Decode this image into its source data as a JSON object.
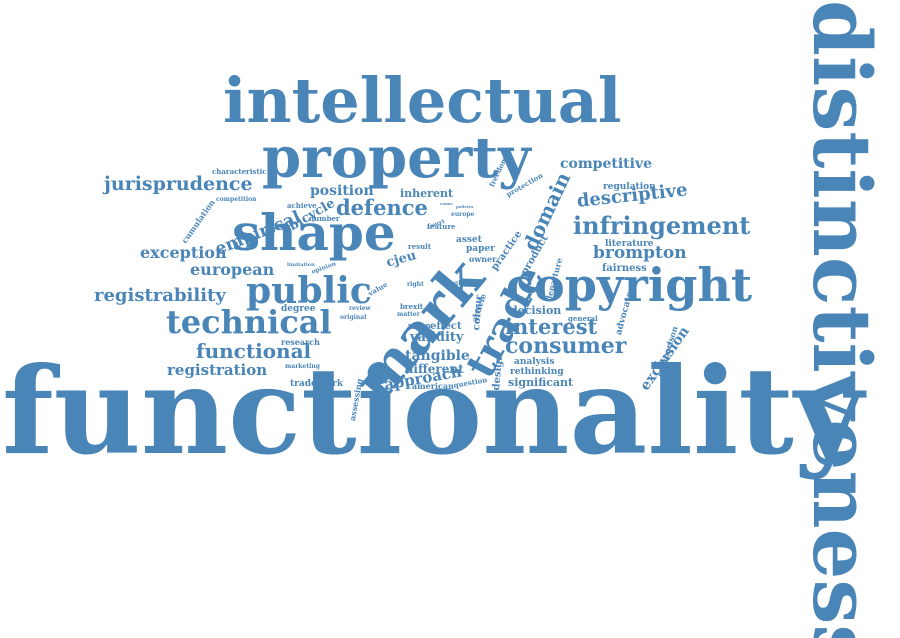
{
  "color": "#4a85b8",
  "words": [
    {
      "text": "functionality",
      "size": 1.0
    },
    {
      "text": "distinctiveness",
      "size": 0.8
    },
    {
      "text": "intellectual",
      "size": 0.55
    },
    {
      "text": "property",
      "size": 0.5
    },
    {
      "text": "mark",
      "size": 0.48
    },
    {
      "text": "shape",
      "size": 0.45
    },
    {
      "text": "copyright",
      "size": 0.4
    },
    {
      "text": "trade",
      "size": 0.34
    },
    {
      "text": "public",
      "size": 0.3
    },
    {
      "text": "technical",
      "size": 0.28
    },
    {
      "text": "infringement",
      "size": 0.22
    },
    {
      "text": "consumer",
      "size": 0.2
    },
    {
      "text": "interest",
      "size": 0.2
    },
    {
      "text": "defence",
      "size": 0.18
    },
    {
      "text": "functional",
      "size": 0.17
    },
    {
      "text": "jurisprudence",
      "size": 0.17
    },
    {
      "text": "descriptive",
      "size": 0.17
    },
    {
      "text": "domain",
      "size": 0.16
    },
    {
      "text": "registrability",
      "size": 0.15
    },
    {
      "text": "brompton",
      "size": 0.15
    },
    {
      "text": "exception",
      "size": 0.14
    },
    {
      "text": "european",
      "size": 0.14
    },
    {
      "text": "registration",
      "size": 0.13
    },
    {
      "text": "competitive",
      "size": 0.13
    },
    {
      "text": "empirical",
      "size": 0.13
    },
    {
      "text": "approach",
      "size": 0.13
    },
    {
      "text": "position",
      "size": 0.12
    },
    {
      "text": "tangible",
      "size": 0.12
    },
    {
      "text": "validity",
      "size": 0.11
    },
    {
      "text": "bicycle",
      "size": 0.11
    },
    {
      "text": "exclusion",
      "size": 0.11
    },
    {
      "text": "different",
      "size": 0.1
    },
    {
      "text": "significant",
      "size": 0.09
    },
    {
      "text": "inherent",
      "size": 0.09
    },
    {
      "text": "decision",
      "size": 0.09
    },
    {
      "text": "cjeu",
      "size": 0.09
    },
    {
      "text": "effect",
      "size": 0.08
    },
    {
      "text": "fairness",
      "size": 0.08
    },
    {
      "text": "colour",
      "size": 0.08
    },
    {
      "text": "design",
      "size": 0.08
    },
    {
      "text": "literature",
      "size": 0.07
    },
    {
      "text": "regulation",
      "size": 0.07
    },
    {
      "text": "advocate",
      "size": 0.07
    },
    {
      "text": "comparison",
      "size": 0.07
    },
    {
      "text": "analysis",
      "size": 0.07
    },
    {
      "text": "rethinking",
      "size": 0.07
    },
    {
      "text": "trademark",
      "size": 0.07
    },
    {
      "text": "cumulation",
      "size": 0.07
    },
    {
      "text": "research",
      "size": 0.06
    },
    {
      "text": "degree",
      "size": 0.06
    },
    {
      "text": "marketing",
      "size": 0.05
    },
    {
      "text": "assessing",
      "size": 0.06
    },
    {
      "text": "american",
      "size": 0.06
    },
    {
      "text": "asset",
      "size": 0.07
    },
    {
      "text": "paper",
      "size": 0.07
    },
    {
      "text": "owner",
      "size": 0.06
    },
    {
      "text": "practice",
      "size": 0.07
    },
    {
      "text": "product",
      "size": 0.07
    },
    {
      "text": "departure",
      "size": 0.06
    },
    {
      "text": "general",
      "size": 0.05
    },
    {
      "text": "characteristic",
      "size": 0.05
    },
    {
      "text": "competition",
      "size": 0.05
    },
    {
      "text": "achieve",
      "size": 0.05
    },
    {
      "text": "number",
      "size": 0.05
    },
    {
      "text": "protection",
      "size": 0.05
    },
    {
      "text": "freedom",
      "size": 0.05
    },
    {
      "text": "europe",
      "size": 0.04
    },
    {
      "text": "feature",
      "size": 0.05
    },
    {
      "text": "result",
      "size": 0.05
    },
    {
      "text": "value",
      "size": 0.05
    },
    {
      "text": "right",
      "size": 0.04
    },
    {
      "text": "article",
      "size": 0.06
    },
    {
      "text": "matter",
      "size": 0.04
    },
    {
      "text": "brexit",
      "size": 0.05
    },
    {
      "text": "union",
      "size": 0.05
    },
    {
      "text": "question",
      "size": 0.05
    },
    {
      "text": "review",
      "size": 0.04
    },
    {
      "text": "original",
      "size": 0.04
    },
    {
      "text": "limitation",
      "size": 0.04
    },
    {
      "text": "opinion",
      "size": 0.04
    },
    {
      "text": "single",
      "size": 0.04
    },
    {
      "text": "court",
      "size": 0.04
    },
    {
      "text": "policies",
      "size": 0.03
    },
    {
      "text": "cause",
      "size": 0.03
    }
  ]
}
